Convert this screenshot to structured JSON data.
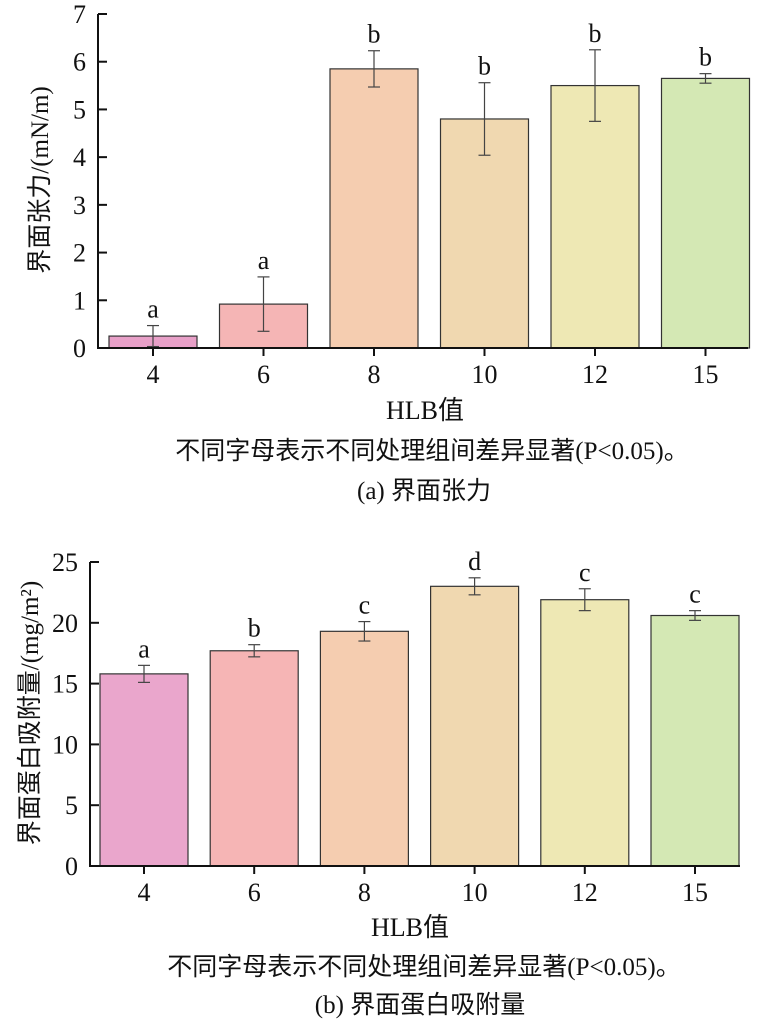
{
  "chart_data": [
    {
      "type": "bar",
      "categories": [
        "4",
        "6",
        "8",
        "10",
        "12",
        "15"
      ],
      "values": [
        0.25,
        0.92,
        5.85,
        4.8,
        5.5,
        5.65
      ],
      "errors": [
        0.22,
        0.57,
        0.38,
        0.76,
        0.75,
        0.1
      ],
      "significance": [
        "a",
        "a",
        "b",
        "b",
        "b",
        "b"
      ],
      "colors": [
        "#e8a0c8",
        "#f5b5b5",
        "#f5cdb0",
        "#f0d8b0",
        "#eee8b4",
        "#d4e8b4"
      ],
      "xlabel": "HLB值",
      "ylabel": "界面张力/(mN/m)",
      "ylim": [
        0,
        7
      ],
      "yticks": [
        0,
        1,
        2,
        3,
        4,
        5,
        6,
        7
      ],
      "note": "不同字母表示不同处理组间差异显著(P<0.05)。",
      "caption": "(a) 界面张力"
    },
    {
      "type": "bar",
      "categories": [
        "4",
        "6",
        "8",
        "10",
        "12",
        "15"
      ],
      "values": [
        15.8,
        17.7,
        19.3,
        23.0,
        21.9,
        20.6
      ],
      "errors": [
        0.7,
        0.5,
        0.8,
        0.7,
        0.9,
        0.4
      ],
      "significance": [
        "a",
        "b",
        "c",
        "d",
        "c",
        "c"
      ],
      "colors": [
        "#eaa6cc",
        "#f6b5b5",
        "#f5cdb0",
        "#f0d8b0",
        "#eee8b4",
        "#d4e8b4"
      ],
      "xlabel": "HLB值",
      "ylabel": "界面蛋白吸附量/(mg/m²)",
      "ylim": [
        0,
        25
      ],
      "yticks": [
        0,
        5,
        10,
        15,
        20,
        25
      ],
      "note": "不同字母表示不同处理组间差异显著(P<0.05)。",
      "caption": "(b) 界面蛋白吸附量"
    }
  ]
}
